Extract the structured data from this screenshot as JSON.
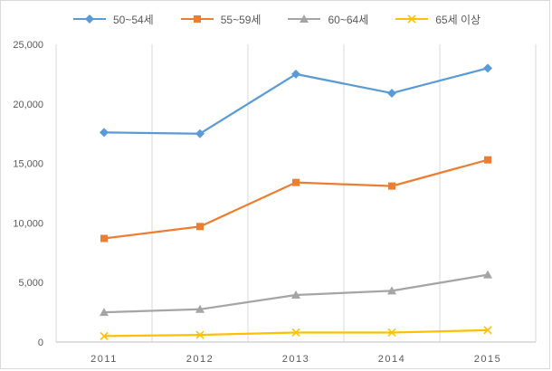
{
  "chart_data": {
    "type": "line",
    "categories": [
      "2011",
      "2012",
      "2013",
      "2014",
      "2015"
    ],
    "series": [
      {
        "name": "50~54세",
        "color": "#5b9bd5",
        "marker": "diamond",
        "values": [
          17600,
          17500,
          22500,
          20900,
          23000
        ]
      },
      {
        "name": "55~59세",
        "color": "#ed7d31",
        "marker": "square",
        "values": [
          8700,
          9700,
          13400,
          13100,
          15300
        ]
      },
      {
        "name": "60~64세",
        "color": "#a5a5a5",
        "marker": "triangle",
        "values": [
          2500,
          2750,
          3950,
          4300,
          5650
        ]
      },
      {
        "name": "65세 이상",
        "color": "#ffc000",
        "marker": "x",
        "values": [
          500,
          600,
          800,
          800,
          1000
        ]
      }
    ],
    "ylim": [
      0,
      25000
    ],
    "yticks": [
      "0",
      "5,000",
      "10,000",
      "15,000",
      "20,000",
      "25,000"
    ],
    "grid": "vertical",
    "legend": "top-center"
  }
}
